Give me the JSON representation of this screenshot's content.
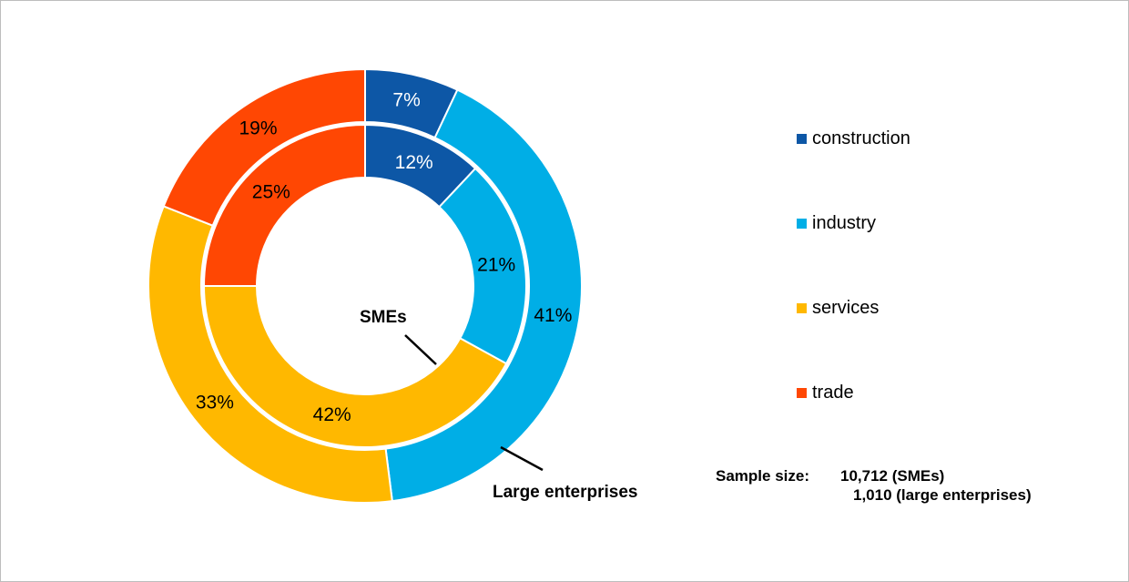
{
  "chart_data": {
    "type": "pie",
    "variant": "nested-donut",
    "title": "",
    "categories": [
      "construction",
      "industry",
      "services",
      "trade"
    ],
    "colors": [
      "#0D57A6",
      "#00AEE6",
      "#FFB800",
      "#FF4703"
    ],
    "label_colors": [
      "#FFFFFF",
      "#000000",
      "#000000",
      "#000000"
    ],
    "unit": "%",
    "series": [
      {
        "name": "SMEs",
        "ring": "inner",
        "values": [
          12,
          21,
          42,
          25
        ]
      },
      {
        "name": "Large enterprises",
        "ring": "outer",
        "values": [
          7,
          41,
          33,
          19
        ]
      }
    ],
    "legend_position": "right",
    "ring_labels": {
      "inner": "SMEs",
      "outer": "Large enterprises"
    }
  },
  "annotations": {
    "smes": "SMEs",
    "large": "Large enterprises"
  },
  "sample_size": {
    "label": "Sample size:",
    "line1": "10,712 (SMEs)",
    "line2": "1,010 (large enterprises)"
  }
}
